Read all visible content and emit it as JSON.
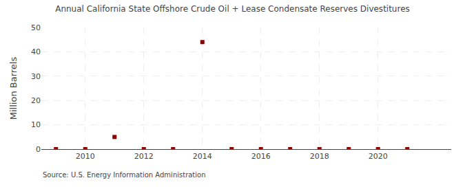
{
  "chart_data": {
    "type": "scatter",
    "title": "Annual California State Offshore Crude Oil + Lease Condensate Reserves Divestitures",
    "ylabel": "Million Barrels",
    "source": "Source: U.S. Energy Information Administration",
    "x": [
      2009,
      2010,
      2011,
      2012,
      2013,
      2014,
      2015,
      2016,
      2017,
      2018,
      2019,
      2020,
      2021
    ],
    "values": [
      0.0,
      0.0,
      5.0,
      0.0,
      0.0,
      44.0,
      0.0,
      0.0,
      0.0,
      0.0,
      0.0,
      0.0,
      0.0
    ],
    "color": "#8b0000",
    "marker": "square",
    "xlim": [
      2008.5,
      2022.5
    ],
    "ylim": [
      0,
      50
    ],
    "xticks": [
      2010,
      2012,
      2014,
      2016,
      2018,
      2020
    ],
    "yticks": [
      0,
      10,
      20,
      30,
      40,
      50
    ],
    "grid": true
  }
}
